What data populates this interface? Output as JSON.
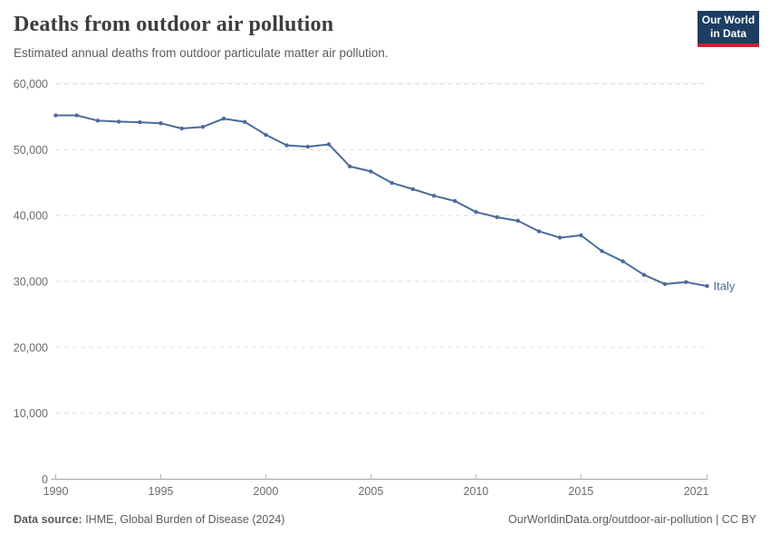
{
  "header": {
    "title": "Deaths from outdoor air pollution",
    "subtitle": "Estimated annual deaths from outdoor particulate matter air pollution."
  },
  "logo": {
    "line1": "Our World",
    "line2": "in Data",
    "bg_color": "#1d3d63",
    "bar_color": "#cc202e"
  },
  "chart_data": {
    "type": "line",
    "title": "Deaths from outdoor air pollution",
    "xlabel": "",
    "ylabel": "",
    "x": [
      1990,
      1991,
      1992,
      1993,
      1994,
      1995,
      1996,
      1997,
      1998,
      1999,
      2000,
      2001,
      2002,
      2003,
      2004,
      2005,
      2006,
      2007,
      2008,
      2009,
      2010,
      2011,
      2012,
      2013,
      2014,
      2015,
      2016,
      2017,
      2018,
      2019,
      2020,
      2021
    ],
    "series": [
      {
        "name": "Italy",
        "color": "#4c6a9c",
        "values": [
          55200,
          55200,
          54400,
          54250,
          54150,
          54000,
          53200,
          53450,
          54700,
          54200,
          52250,
          50650,
          50450,
          50800,
          47450,
          46700,
          44950,
          44000,
          43000,
          42200,
          40550,
          39750,
          39200,
          37600,
          36650,
          37000,
          34600,
          33050,
          31000,
          29600,
          29900,
          29300
        ]
      }
    ],
    "ylim": [
      0,
      60000
    ],
    "yticks": [
      0,
      10000,
      20000,
      30000,
      40000,
      50000,
      60000
    ],
    "xticks": [
      1990,
      1995,
      2000,
      2005,
      2010,
      2015,
      2021
    ],
    "grid": "horizontal-dashed",
    "legend_position": "end-of-line-label",
    "marker": "dot"
  },
  "footer": {
    "source_label": "Data source:",
    "source_value": " IHME, Global Burden of Disease (2024)",
    "link": "OurWorldinData.org/outdoor-air-pollution",
    "divider": " | ",
    "license": "CC BY"
  },
  "colors": {
    "line": "#4c6a9c",
    "grid": "#dcdcdc",
    "axis": "#a5a5a5",
    "tick": "#b5b5b5",
    "tick_text": "#6b6b6b",
    "title_text": "#3d3d3d",
    "subtitle_text": "#5b5b5b"
  }
}
